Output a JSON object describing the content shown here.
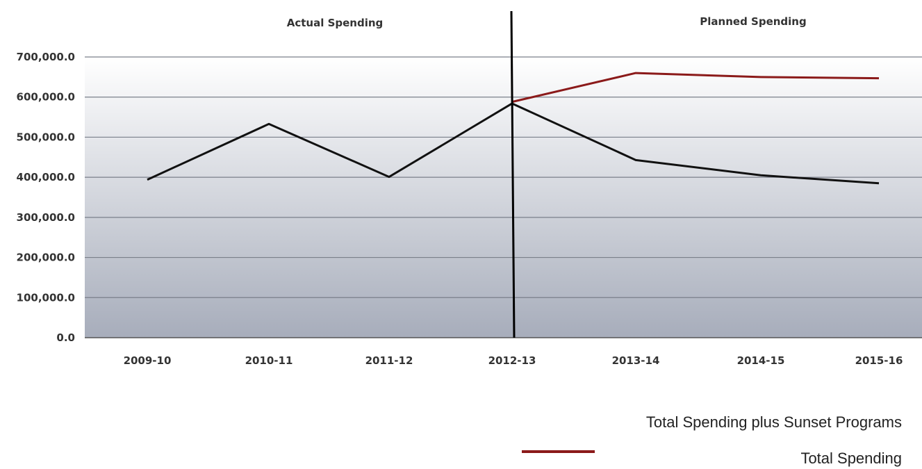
{
  "chart_data": {
    "type": "line",
    "categories": [
      "2009-10",
      "2010-11",
      "2011-12",
      "2012-13",
      "2013-14",
      "2014-15",
      "2015-16"
    ],
    "series": [
      {
        "name": "Total Spending",
        "color": "#111111",
        "values": [
          394000,
          533000,
          401000,
          584000,
          443000,
          405000,
          385000
        ]
      },
      {
        "name": "Total Spending plus Sunset Programs",
        "color": "#8b1a1a",
        "values": [
          null,
          null,
          null,
          588000,
          660000,
          650000,
          647000
        ]
      }
    ],
    "y_ticks": [
      "0.0",
      "100,000.0",
      "200,000.0",
      "300,000.0",
      "400,000.0",
      "500,000.0",
      "600,000.0",
      "700,000.0"
    ],
    "ylim": [
      0,
      700000
    ],
    "grid": true,
    "divider_after_category": "2012-13",
    "sections": {
      "left": "Actual Spending",
      "right": "Planned Spending"
    },
    "legend": [
      {
        "label": "Total Spending plus Sunset Programs",
        "color": "#8b1a1a",
        "marker": "______"
      },
      {
        "label": "Total Spending",
        "color": "#111111",
        "marker": ""
      }
    ],
    "legend_position": "bottom-right"
  }
}
